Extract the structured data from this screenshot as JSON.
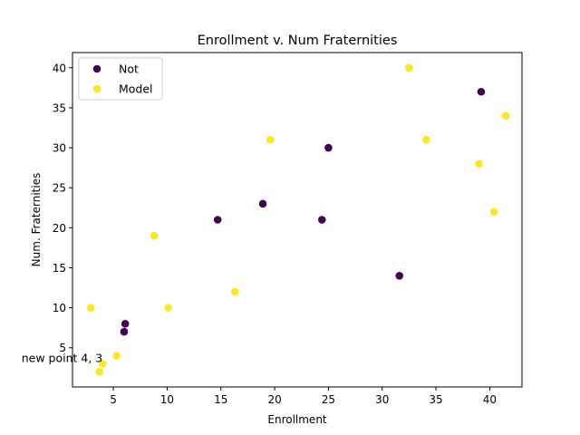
{
  "chart_data": {
    "type": "scatter",
    "title": "Enrollment v. Num Fraternities",
    "xlabel": "Enrollment",
    "ylabel": "Num. Fraternities",
    "xlim": [
      1.2,
      43.0
    ],
    "ylim": [
      0.1,
      41.9
    ],
    "xticks": [
      5,
      10,
      15,
      20,
      25,
      30,
      35,
      40
    ],
    "yticks": [
      5,
      10,
      15,
      20,
      25,
      30,
      35,
      40
    ],
    "grid": false,
    "legend_position": "top-left",
    "series": [
      {
        "name": "Not",
        "color": "#440154",
        "points": [
          {
            "x": 6.1,
            "y": 8
          },
          {
            "x": 6.0,
            "y": 7
          },
          {
            "x": 14.7,
            "y": 21
          },
          {
            "x": 18.9,
            "y": 23
          },
          {
            "x": 24.4,
            "y": 21
          },
          {
            "x": 25.0,
            "y": 30
          },
          {
            "x": 31.6,
            "y": 14
          },
          {
            "x": 39.2,
            "y": 37
          }
        ]
      },
      {
        "name": "Model",
        "color": "#fde725",
        "points": [
          {
            "x": 2.9,
            "y": 10
          },
          {
            "x": 3.7,
            "y": 2
          },
          {
            "x": 4.0,
            "y": 3
          },
          {
            "x": 5.3,
            "y": 4
          },
          {
            "x": 8.8,
            "y": 19
          },
          {
            "x": 10.1,
            "y": 10
          },
          {
            "x": 16.3,
            "y": 12
          },
          {
            "x": 19.6,
            "y": 31
          },
          {
            "x": 32.5,
            "y": 40
          },
          {
            "x": 34.1,
            "y": 31
          },
          {
            "x": 39.0,
            "y": 28
          },
          {
            "x": 40.4,
            "y": 22
          },
          {
            "x": 41.5,
            "y": 34
          }
        ]
      }
    ],
    "annotations": [
      {
        "text": "new point 4, 3",
        "x": 4,
        "y": 3
      }
    ]
  }
}
